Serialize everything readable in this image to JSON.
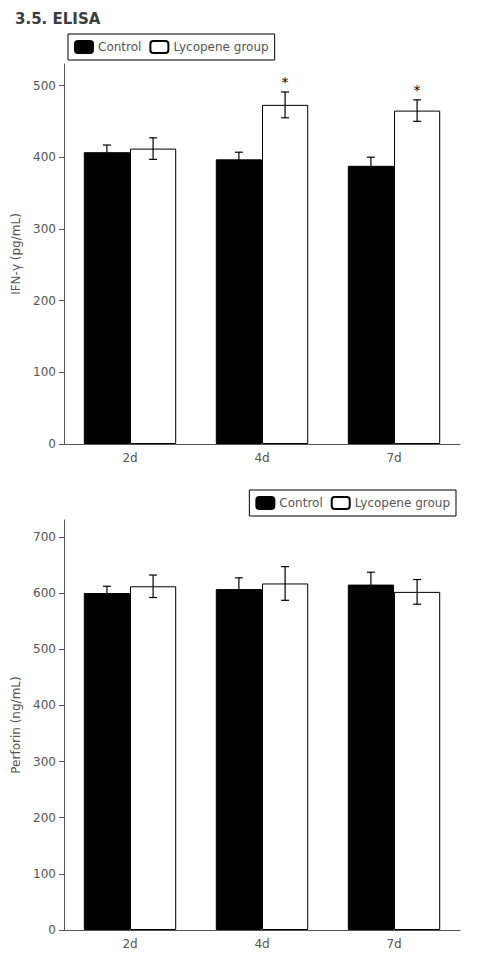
{
  "chart_data": [
    {
      "type": "bar",
      "title": "3.5. ELISA",
      "ylabel": "IFN-γ (pg/mL)",
      "categories": [
        "2d",
        "4d",
        "7d"
      ],
      "series": [
        {
          "name": "Control",
          "color": "#000000",
          "values": [
            407,
            397,
            388
          ],
          "errors": [
            10,
            10,
            12
          ]
        },
        {
          "name": "Lycopene group",
          "color": "#ffffff",
          "values": [
            412,
            473,
            465
          ],
          "errors": [
            15,
            18,
            15
          ]
        }
      ],
      "annotations": [
        {
          "text": "*",
          "x": "4d",
          "series": "Lycopene group"
        },
        {
          "text": "*",
          "x": "7d",
          "series": "Lycopene group"
        }
      ],
      "ylim": [
        0,
        530
      ],
      "yticks": [
        0,
        100,
        200,
        300,
        400,
        500
      ],
      "grid": false,
      "legend": "upper left"
    },
    {
      "type": "bar",
      "ylabel": "Perforin (ng/mL)",
      "categories": [
        "2d",
        "4d",
        "7d"
      ],
      "series": [
        {
          "name": "Control",
          "color": "#000000",
          "values": [
            600,
            607,
            615
          ],
          "errors": [
            12,
            20,
            22
          ]
        },
        {
          "name": "Lycopene group",
          "color": "#ffffff",
          "values": [
            612,
            617,
            602
          ],
          "errors": [
            20,
            30,
            22
          ]
        }
      ],
      "ylim": [
        0,
        730
      ],
      "yticks": [
        0,
        100,
        200,
        300,
        400,
        500,
        600,
        700
      ],
      "grid": false,
      "legend": "upper right"
    }
  ]
}
